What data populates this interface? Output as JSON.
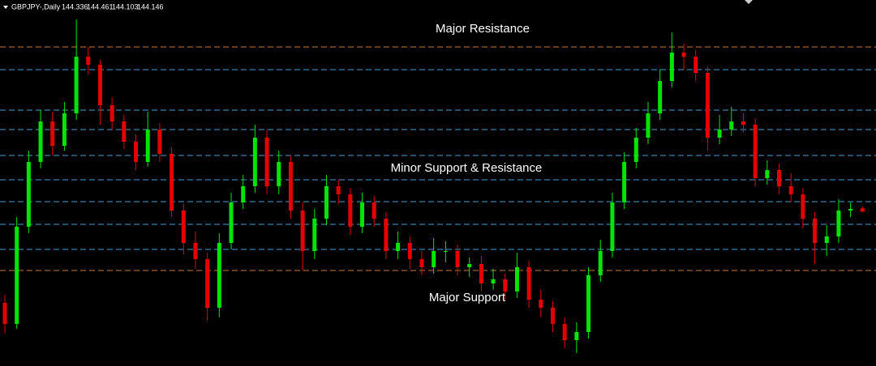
{
  "chart_data": {
    "type": "candlestick",
    "symbol": "GBPJPY-,Daily",
    "ylim": [
      134.6,
      157.2
    ],
    "up_color": "#00e600",
    "down_color": "#e60000",
    "levels": [
      {
        "value": 154.3,
        "color": "#c8783c"
      },
      {
        "value": 152.9,
        "color": "#3fa0d8"
      },
      {
        "value": 150.4,
        "color": "#3fa0d8"
      },
      {
        "value": 149.2,
        "color": "#3fa0d8"
      },
      {
        "value": 147.6,
        "color": "#3fa0d8"
      },
      {
        "value": 146.1,
        "color": "#3fa0d8"
      },
      {
        "value": 144.75,
        "color": "#3fa0d8"
      },
      {
        "value": 143.35,
        "color": "#3fa0d8"
      },
      {
        "value": 141.8,
        "color": "#3fa0d8"
      },
      {
        "value": 140.5,
        "color": "#c8783c"
      }
    ],
    "annotations": [
      "Major Resistance",
      "Minor Support & Resistance",
      "Major Support"
    ],
    "candles": [
      [
        138.5,
        139.0,
        136.6,
        137.2
      ],
      [
        137.2,
        143.8,
        136.9,
        143.2
      ],
      [
        143.2,
        147.9,
        142.8,
        147.2
      ],
      [
        147.2,
        150.4,
        146.8,
        149.7
      ],
      [
        149.7,
        150.3,
        147.6,
        148.2
      ],
      [
        148.2,
        150.9,
        147.9,
        150.2
      ],
      [
        150.2,
        156.0,
        149.8,
        153.7
      ],
      [
        153.7,
        154.3,
        152.6,
        153.2
      ],
      [
        153.2,
        153.5,
        149.5,
        150.7
      ],
      [
        150.7,
        151.2,
        149.2,
        149.7
      ],
      [
        149.7,
        150.1,
        148.0,
        148.45
      ],
      [
        148.45,
        148.9,
        146.7,
        147.2
      ],
      [
        147.2,
        150.3,
        146.9,
        149.2
      ],
      [
        149.2,
        149.6,
        147.2,
        147.7
      ],
      [
        147.7,
        148.1,
        143.8,
        144.2
      ],
      [
        144.2,
        144.6,
        141.5,
        142.2
      ],
      [
        142.2,
        142.9,
        140.6,
        141.2
      ],
      [
        141.2,
        141.6,
        137.4,
        138.2
      ],
      [
        138.2,
        142.8,
        137.6,
        142.2
      ],
      [
        142.2,
        145.3,
        141.8,
        144.7
      ],
      [
        144.7,
        146.4,
        144.3,
        145.7
      ],
      [
        145.7,
        149.5,
        145.3,
        148.7
      ],
      [
        148.7,
        149.2,
        145.2,
        145.7
      ],
      [
        145.7,
        147.9,
        145.2,
        147.2
      ],
      [
        147.2,
        147.6,
        143.7,
        144.2
      ],
      [
        144.2,
        144.7,
        140.5,
        141.7
      ],
      [
        141.7,
        144.3,
        141.2,
        143.7
      ],
      [
        143.7,
        146.4,
        143.3,
        145.7
      ],
      [
        145.7,
        146.1,
        144.6,
        145.2
      ],
      [
        145.2,
        145.6,
        142.7,
        143.2
      ],
      [
        143.2,
        145.3,
        142.8,
        144.7
      ],
      [
        144.7,
        145.1,
        143.2,
        143.7
      ],
      [
        143.7,
        144.1,
        141.2,
        141.7
      ],
      [
        141.7,
        142.9,
        141.2,
        142.2
      ],
      [
        142.2,
        142.6,
        140.6,
        141.2
      ],
      [
        141.2,
        141.7,
        140.2,
        140.7
      ],
      [
        140.7,
        142.5,
        140.3,
        141.7
      ],
      [
        141.7,
        142.3,
        141.0,
        141.7
      ],
      [
        141.7,
        142.1,
        140.2,
        140.7
      ],
      [
        140.7,
        141.3,
        140.1,
        140.9
      ],
      [
        140.9,
        141.4,
        139.2,
        139.7
      ],
      [
        139.7,
        140.6,
        139.3,
        139.95
      ],
      [
        139.95,
        140.3,
        138.6,
        139.2
      ],
      [
        139.2,
        141.6,
        138.8,
        140.7
      ],
      [
        140.7,
        141.1,
        138.2,
        138.7
      ],
      [
        138.7,
        139.3,
        137.6,
        138.2
      ],
      [
        138.2,
        138.6,
        136.7,
        137.2
      ],
      [
        137.2,
        137.6,
        135.7,
        136.2
      ],
      [
        136.2,
        137.3,
        135.4,
        136.7
      ],
      [
        136.7,
        140.7,
        136.3,
        140.2
      ],
      [
        140.2,
        142.4,
        139.8,
        141.7
      ],
      [
        141.7,
        145.3,
        141.3,
        144.7
      ],
      [
        144.7,
        147.8,
        144.3,
        147.2
      ],
      [
        147.2,
        149.3,
        146.8,
        148.7
      ],
      [
        148.7,
        150.9,
        148.3,
        150.2
      ],
      [
        150.2,
        152.9,
        149.8,
        152.2
      ],
      [
        152.2,
        155.2,
        151.8,
        153.95
      ],
      [
        153.95,
        154.5,
        152.9,
        153.7
      ],
      [
        153.7,
        154.1,
        152.2,
        152.7
      ],
      [
        152.7,
        153.1,
        147.9,
        148.7
      ],
      [
        148.7,
        150.1,
        148.3,
        149.2
      ],
      [
        149.2,
        150.6,
        148.8,
        149.7
      ],
      [
        149.7,
        150.2,
        149.0,
        149.5
      ],
      [
        149.5,
        149.9,
        145.7,
        146.2
      ],
      [
        146.2,
        147.3,
        145.8,
        146.7
      ],
      [
        146.7,
        147.1,
        145.2,
        145.7
      ],
      [
        145.7,
        146.5,
        144.7,
        145.2
      ],
      [
        145.2,
        145.6,
        143.1,
        143.7
      ],
      [
        143.7,
        144.1,
        140.9,
        142.2
      ],
      [
        142.2,
        143.3,
        141.4,
        142.6
      ],
      [
        142.6,
        144.9,
        142.2,
        144.2
      ],
      [
        144.2,
        144.7,
        143.8,
        144.3
      ],
      [
        144.336,
        144.461,
        144.103,
        144.146
      ]
    ]
  }
}
